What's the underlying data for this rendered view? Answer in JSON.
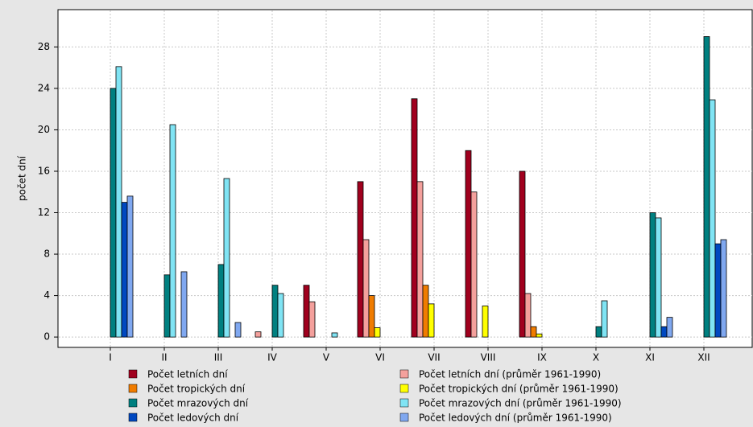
{
  "chart_data": {
    "type": "bar",
    "y_label": "počet dní",
    "categories": [
      "I",
      "II",
      "III",
      "IV",
      "V",
      "VI",
      "VII",
      "VIII",
      "IX",
      "X",
      "XI",
      "XII"
    ],
    "series": [
      {
        "name": "Počet letních dní",
        "color": "#a0001e",
        "values": [
          0,
          0,
          0,
          0,
          5,
          15,
          23,
          18,
          16,
          0,
          0,
          0
        ]
      },
      {
        "name": "Počet letních dní (průměr 1961-1990)",
        "color": "#f4a09c",
        "values": [
          0,
          0,
          0,
          0.5,
          3.4,
          9.4,
          15,
          14,
          4.2,
          0,
          0,
          0
        ]
      },
      {
        "name": "Počet tropických dní",
        "color": "#f07c00",
        "values": [
          0,
          0,
          0,
          0,
          0,
          4,
          5,
          0,
          1,
          0,
          0,
          0
        ]
      },
      {
        "name": "Počet tropických dní (průměr 1961-1990)",
        "color": "#ffff00",
        "values": [
          0,
          0,
          0,
          0,
          0,
          0.9,
          3.2,
          3,
          0.3,
          0,
          0,
          0
        ]
      },
      {
        "name": "Počet mrazových dní",
        "color": "#008080",
        "values": [
          24,
          6,
          7,
          5,
          0,
          0,
          0,
          0,
          0,
          1,
          12,
          29
        ]
      },
      {
        "name": "Počet mrazových dní (průměr 1961-1990)",
        "color": "#80e4f4",
        "values": [
          26.1,
          20.5,
          15.3,
          4.2,
          0.4,
          0,
          0,
          0,
          0,
          3.5,
          11.5,
          22.9
        ]
      },
      {
        "name": "Počet ledových dní",
        "color": "#0048c0",
        "values": [
          13,
          0,
          0,
          0,
          0,
          0,
          0,
          0,
          0,
          0,
          1,
          9
        ]
      },
      {
        "name": "Počet ledových dní (průměr 1961-1990)",
        "color": "#80a8f0",
        "values": [
          13.6,
          6.3,
          1.4,
          0,
          0,
          0,
          0,
          0,
          0,
          0,
          1.9,
          9.4
        ]
      }
    ],
    "ylim": [
      -1,
      31.6
    ],
    "yticks": [
      0,
      4,
      8,
      12,
      16,
      20,
      24,
      28
    ],
    "grid": true,
    "legend": "bottom"
  }
}
